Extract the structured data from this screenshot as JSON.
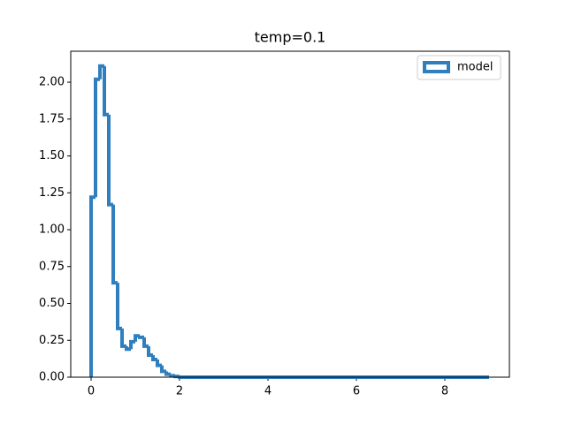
{
  "chart_data": {
    "type": "histogram",
    "title": "temp=0.1",
    "series": [
      {
        "name": "model",
        "color": "#2f7fbf",
        "bins": [
          0,
          0.1,
          0.2,
          0.3,
          0.4,
          0.5,
          0.6,
          0.7,
          0.8,
          0.9,
          1,
          1.1,
          1.2,
          1.3,
          1.4,
          1.5,
          1.6,
          1.7,
          1.8,
          1.9,
          2,
          2.1,
          2.2,
          2.3,
          2.4,
          2.5,
          2.6,
          2.7,
          2.8,
          2.9,
          3,
          3.1,
          3.2,
          3.3,
          3.4,
          3.5,
          3.6,
          3.7,
          3.8,
          3.9,
          4,
          4.1,
          4.2,
          4.3,
          4.4,
          4.5,
          4.6,
          4.7,
          4.8,
          4.9,
          5,
          5.1,
          5.2,
          5.3,
          5.4,
          5.5,
          5.6,
          5.7,
          5.8,
          5.9,
          6,
          6.1,
          6.2,
          6.3,
          6.4,
          6.5,
          6.6,
          6.7,
          6.8,
          6.9,
          7,
          7.1,
          7.2,
          7.3,
          7.4,
          7.5,
          7.6,
          7.7,
          7.8,
          7.9,
          8,
          8.1,
          8.2,
          8.3,
          8.4,
          8.5,
          8.6,
          8.7,
          8.8,
          8.9,
          9
        ],
        "values": [
          1.22,
          2.02,
          2.11,
          1.78,
          1.17,
          0.64,
          0.33,
          0.21,
          0.19,
          0.24,
          0.28,
          0.27,
          0.21,
          0.15,
          0.12,
          0.08,
          0.04,
          0.02,
          0.01,
          0.005,
          0,
          0,
          0,
          0,
          0,
          0,
          0,
          0,
          0,
          0,
          0,
          0,
          0,
          0,
          0,
          0,
          0,
          0,
          0,
          0,
          0,
          0,
          0,
          0,
          0,
          0,
          0,
          0,
          0,
          0,
          0,
          0,
          0,
          0,
          0,
          0,
          0,
          0,
          0,
          0,
          0,
          0,
          0,
          0,
          0,
          0,
          0,
          0,
          0,
          0,
          0,
          0,
          0,
          0,
          0,
          0,
          0,
          0,
          0,
          0,
          0,
          0,
          0,
          0,
          0,
          0,
          0,
          0,
          0,
          0
        ]
      }
    ],
    "xlim": [
      -0.46,
      9.46
    ],
    "xticks": [
      0,
      2,
      4,
      6,
      8
    ],
    "ylim": [
      0,
      2.21
    ],
    "yticks": [
      {
        "value": 0,
        "label": "0.00"
      },
      {
        "value": 0.25,
        "label": "0.25"
      },
      {
        "value": 0.5,
        "label": "0.50"
      },
      {
        "value": 0.75,
        "label": "0.75"
      },
      {
        "value": 1,
        "label": "1.00"
      },
      {
        "value": 1.25,
        "label": "1.25"
      },
      {
        "value": 1.5,
        "label": "1.50"
      },
      {
        "value": 1.75,
        "label": "1.75"
      },
      {
        "value": 2,
        "label": "2.00"
      }
    ],
    "legend": "upper right"
  }
}
